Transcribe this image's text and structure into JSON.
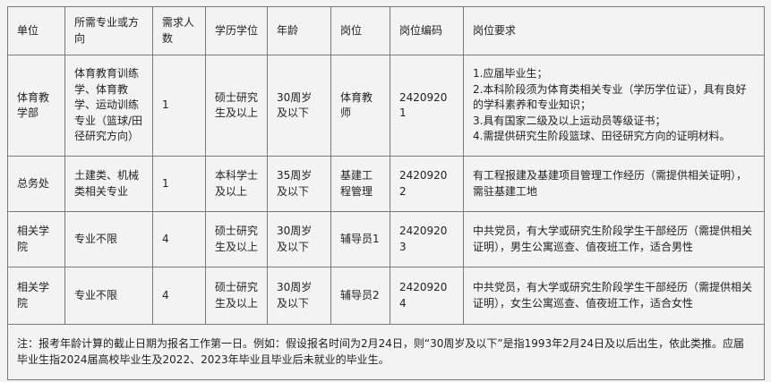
{
  "headers": [
    "单位",
    "所需专业或方向",
    "需求人数",
    "学历学位",
    "年龄",
    "岗位",
    "岗位编码",
    "岗位要求"
  ],
  "rows": [
    {
      "unit": "体育教学部",
      "major": "体育教育训练学、体育教学、运动训练专业（篮球/田径研究方向）",
      "count": "1",
      "degree": "硕士研究生及以上",
      "age": "30周岁及以下",
      "position": "体育教师",
      "code": "24209201",
      "requirements": "1.应届毕业生；\n2.本科阶段须为体育类相关专业（学历学位证），具有良好的学科素养和专业知识；\n3.具有国家二级及以上运动员等级证书；\n4.需提供研究生阶段篮球、田径研究方向的证明材料。"
    },
    {
      "unit": "总务处",
      "major": "土建类、机械类相关专业",
      "count": "1",
      "degree": "本科学士及以上",
      "age": "35周岁及以下",
      "position": "基建工程管理",
      "code": "24209202",
      "requirements": "有工程报建及基建项目管理工作经历（需提供相关证明），需驻基建工地"
    },
    {
      "unit": "相关学院",
      "major": "专业不限",
      "count": "4",
      "degree": "硕士研究生及以上",
      "age": "30周岁及以下",
      "position": "辅导员1",
      "code": "24209203",
      "requirements": "中共党员，有大学或研究生阶段学生干部经历（需提供相关证明），男生公寓巡查、值夜班工作，适合男性"
    },
    {
      "unit": "相关学院",
      "major": "专业不限",
      "count": "4",
      "degree": "硕士研究生及以上",
      "age": "30周岁及以下",
      "position": "辅导员2",
      "code": "24209204",
      "requirements": "中共党员，有大学或研究生阶段学生干部经历（需提供相关证明），女生公寓巡查、值夜班工作，适合女性"
    }
  ],
  "note": "注：报考年龄计算的截止日期为报名工作第一日。例如：假设报名时间为2月24日，则“30周岁及以下”是指1993年2月24日及以后出生，依此类推。应届毕业生指2024届高校毕业生及2022、2023年毕业且毕业后未就业的毕业生。"
}
